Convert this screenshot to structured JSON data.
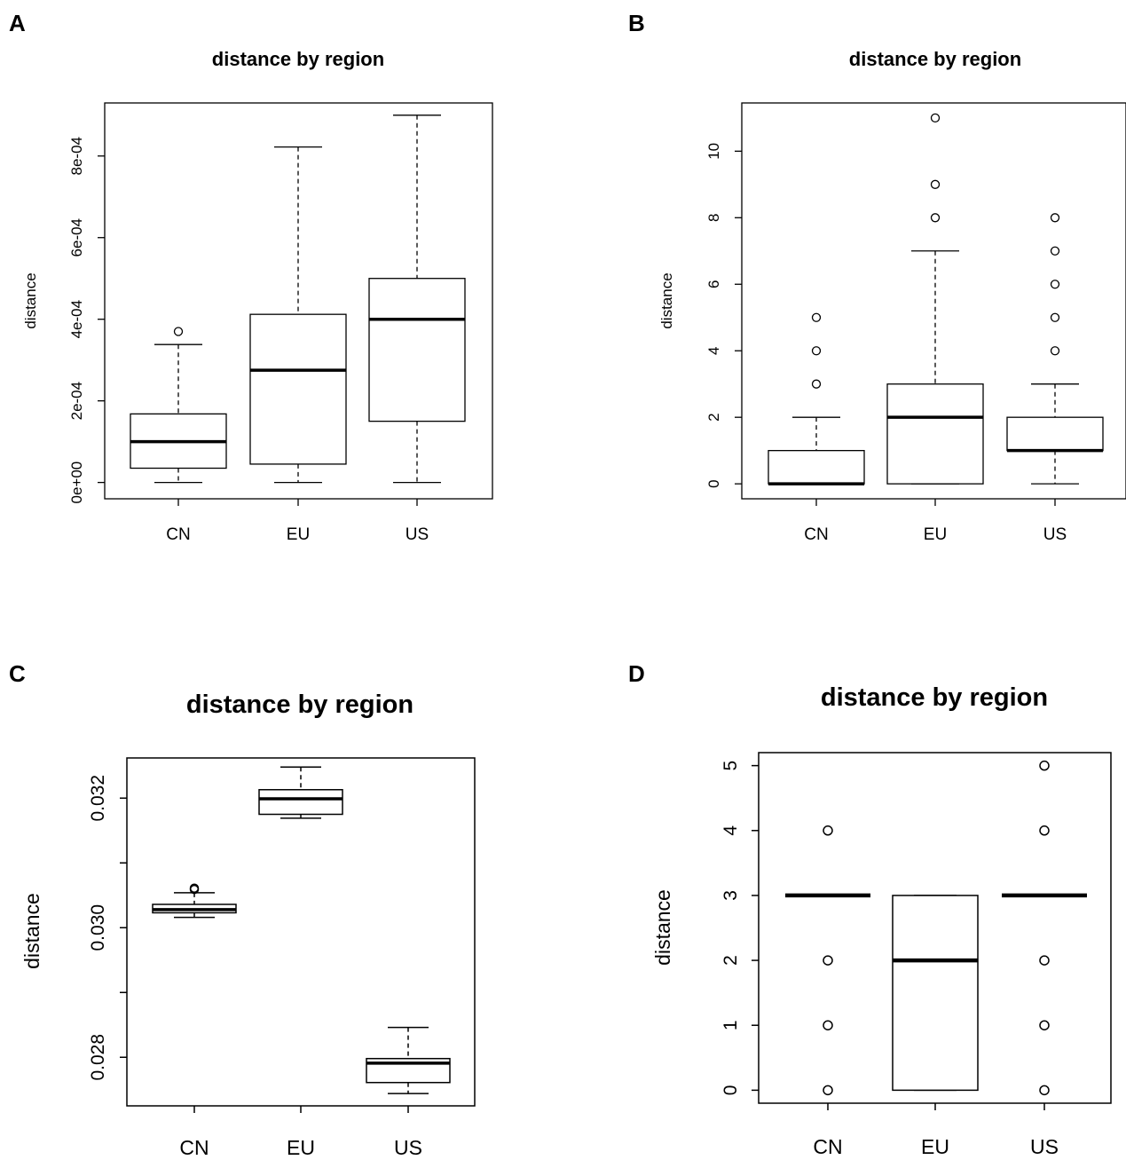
{
  "panel_labels": [
    "A",
    "B",
    "C",
    "D"
  ],
  "chart_data": [
    {
      "type": "boxplot",
      "title": "distance by region",
      "ylabel": "distance",
      "categories": [
        "CN",
        "EU",
        "US"
      ],
      "ylim": [
        -4e-05,
        0.00093
      ],
      "yticks": [
        0,
        0.0002,
        0.0004,
        0.0006,
        0.0008
      ],
      "ytick_labels": [
        "0e+00",
        "2e-04",
        "4e-04",
        "6e-04",
        "8e-04"
      ],
      "boxes": [
        {
          "whisker_low": 0,
          "q1": 3.5e-05,
          "median": 0.0001,
          "q3": 0.000168,
          "whisker_high": 0.000338,
          "outliers": [
            0.00037
          ]
        },
        {
          "whisker_low": 0,
          "q1": 4.5e-05,
          "median": 0.000275,
          "q3": 0.000412,
          "whisker_high": 0.000822,
          "outliers": []
        },
        {
          "whisker_low": 0,
          "q1": 0.00015,
          "median": 0.0004,
          "q3": 0.0005,
          "whisker_high": 0.0009,
          "outliers": []
        }
      ]
    },
    {
      "type": "boxplot",
      "title": "distance by region",
      "ylabel": "distance",
      "categories": [
        "CN",
        "EU",
        "US"
      ],
      "ylim": [
        -0.45,
        11.45
      ],
      "yticks": [
        0,
        2,
        4,
        6,
        8,
        10
      ],
      "ytick_labels": [
        "0",
        "2",
        "4",
        "6",
        "8",
        "10"
      ],
      "boxes": [
        {
          "whisker_low": 0,
          "q1": 0,
          "median": 0,
          "q3": 1,
          "whisker_high": 2,
          "outliers": [
            3,
            4,
            5
          ]
        },
        {
          "whisker_low": 0,
          "q1": 0,
          "median": 2,
          "q3": 3,
          "whisker_high": 7,
          "outliers": [
            8,
            9,
            11
          ]
        },
        {
          "whisker_low": 0,
          "q1": 1,
          "median": 1,
          "q3": 2,
          "whisker_high": 3,
          "outliers": [
            4,
            5,
            6,
            7,
            8
          ]
        }
      ]
    },
    {
      "type": "boxplot",
      "title": "distance by region",
      "ylabel": "distance",
      "categories": [
        "CN",
        "EU",
        "US"
      ],
      "ylim": [
        0.02725,
        0.03262
      ],
      "yticks": [
        0.028,
        0.029,
        0.03,
        0.031,
        0.032
      ],
      "ytick_labels": [
        "0.028",
        "",
        "0.030",
        "",
        "0.032"
      ],
      "boxes": [
        {
          "whisker_low": 0.03016,
          "q1": 0.03023,
          "median": 0.03028,
          "q3": 0.03036,
          "whisker_high": 0.03054,
          "outliers": [
            0.03059,
            0.03061
          ]
        },
        {
          "whisker_low": 0.03169,
          "q1": 0.03175,
          "median": 0.03199,
          "q3": 0.03213,
          "whisker_high": 0.03248,
          "outliers": []
        },
        {
          "whisker_low": 0.02744,
          "q1": 0.02761,
          "median": 0.02791,
          "q3": 0.02798,
          "whisker_high": 0.02846,
          "outliers": []
        }
      ]
    },
    {
      "type": "boxplot",
      "title": "distance by region",
      "ylabel": "distance",
      "categories": [
        "CN",
        "EU",
        "US"
      ],
      "ylim": [
        -0.2,
        5.2
      ],
      "yticks": [
        0,
        1,
        2,
        3,
        4,
        5
      ],
      "ytick_labels": [
        "0",
        "1",
        "2",
        "3",
        "4",
        "5"
      ],
      "boxes": [
        {
          "whisker_low": 3,
          "q1": 3,
          "median": 3,
          "q3": 3,
          "whisker_high": 3,
          "outliers": [
            0,
            1,
            2,
            4
          ]
        },
        {
          "whisker_low": 0,
          "q1": 0,
          "median": 2,
          "q3": 3,
          "whisker_high": 3,
          "outliers": []
        },
        {
          "whisker_low": 3,
          "q1": 3,
          "median": 3,
          "q3": 3,
          "whisker_high": 3,
          "outliers": [
            0,
            1,
            2,
            4,
            5
          ]
        }
      ]
    }
  ]
}
